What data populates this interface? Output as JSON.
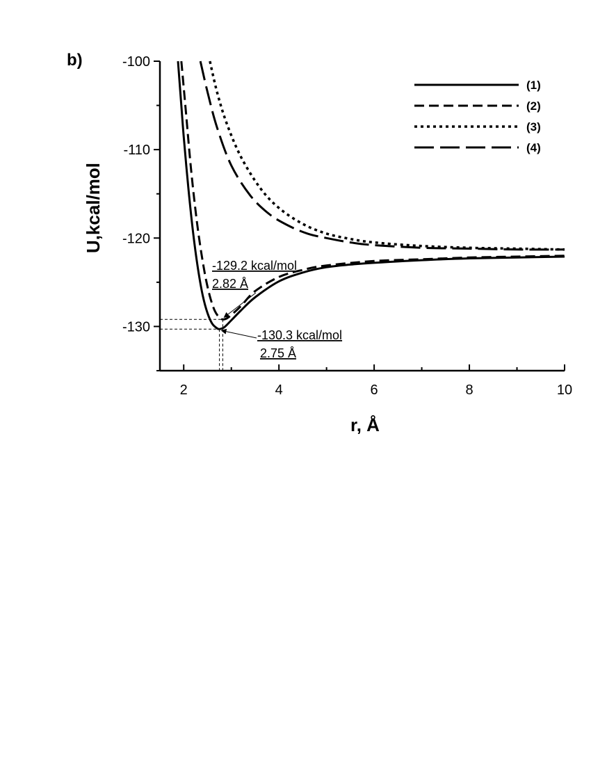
{
  "panel_label": "b)",
  "chart_data": {
    "type": "line",
    "xlabel": "r, Å",
    "ylabel": "U,kcal/mol",
    "xlim": [
      1.5,
      10
    ],
    "ylim": [
      -135,
      -100
    ],
    "x_ticks": [
      2,
      4,
      6,
      8,
      10
    ],
    "x_tick_labels": [
      "2",
      "4",
      "6",
      "8",
      "10"
    ],
    "y_ticks": [
      -130,
      -120,
      -110,
      -100
    ],
    "y_tick_labels": [
      "-130",
      "-120",
      "-110",
      "-100"
    ],
    "grid": false,
    "legend_position": "top-right",
    "series": [
      {
        "name": "(1)",
        "line_style": "solid",
        "x": [
          1.88,
          1.95,
          2.0,
          2.1,
          2.2,
          2.3,
          2.4,
          2.5,
          2.6,
          2.7,
          2.75,
          2.85,
          3.0,
          3.2,
          3.5,
          4.0,
          4.5,
          5.0,
          5.5,
          6.0,
          7.0,
          8.0,
          9.0,
          10.0
        ],
        "y": [
          -100.0,
          -105.0,
          -108.5,
          -114.5,
          -119.5,
          -123.5,
          -126.5,
          -128.5,
          -129.7,
          -130.2,
          -130.3,
          -130.1,
          -129.3,
          -128.2,
          -126.7,
          -124.9,
          -123.9,
          -123.3,
          -123.0,
          -122.8,
          -122.5,
          -122.3,
          -122.2,
          -122.1
        ]
      },
      {
        "name": "(2)",
        "line_style": "dash",
        "x": [
          1.95,
          2.05,
          2.15,
          2.25,
          2.35,
          2.45,
          2.55,
          2.65,
          2.75,
          2.82,
          2.9,
          3.0,
          3.2,
          3.5,
          4.0,
          4.5,
          5.0,
          6.0,
          7.0,
          8.0,
          9.0,
          10.0
        ],
        "y": [
          -100.0,
          -106.0,
          -112.0,
          -117.0,
          -121.0,
          -124.2,
          -126.6,
          -128.2,
          -129.0,
          -129.2,
          -129.1,
          -128.7,
          -127.7,
          -126.0,
          -124.4,
          -123.6,
          -123.1,
          -122.6,
          -122.4,
          -122.2,
          -122.1,
          -122.0
        ]
      },
      {
        "name": "(3)",
        "line_style": "dot",
        "x": [
          2.55,
          2.7,
          2.9,
          3.2,
          3.6,
          4.0,
          4.5,
          5.0,
          5.5,
          6.0,
          7.0,
          8.0,
          9.0,
          10.0
        ],
        "y": [
          -100.0,
          -103.5,
          -107.0,
          -110.8,
          -114.3,
          -116.6,
          -118.4,
          -119.5,
          -120.1,
          -120.5,
          -120.9,
          -121.1,
          -121.2,
          -121.3
        ]
      },
      {
        "name": "(4)",
        "line_style": "long-dash",
        "x": [
          2.35,
          2.5,
          2.7,
          3.0,
          3.4,
          3.8,
          4.2,
          4.6,
          5.0,
          5.5,
          6.0,
          7.0,
          8.0,
          9.0,
          10.0
        ],
        "y": [
          -100.0,
          -103.5,
          -107.5,
          -111.8,
          -115.2,
          -117.3,
          -118.6,
          -119.5,
          -120.0,
          -120.5,
          -120.8,
          -121.1,
          -121.2,
          -121.3,
          -121.3
        ]
      }
    ],
    "annotations": [
      {
        "line1": "-129.2 kcal/mol",
        "line2": "2.82 Å",
        "x": 2.82,
        "y": -129.2
      },
      {
        "line1": "-130.3 kcal/mol",
        "line2": "2.75 Å",
        "x": 2.75,
        "y": -130.3
      }
    ]
  }
}
